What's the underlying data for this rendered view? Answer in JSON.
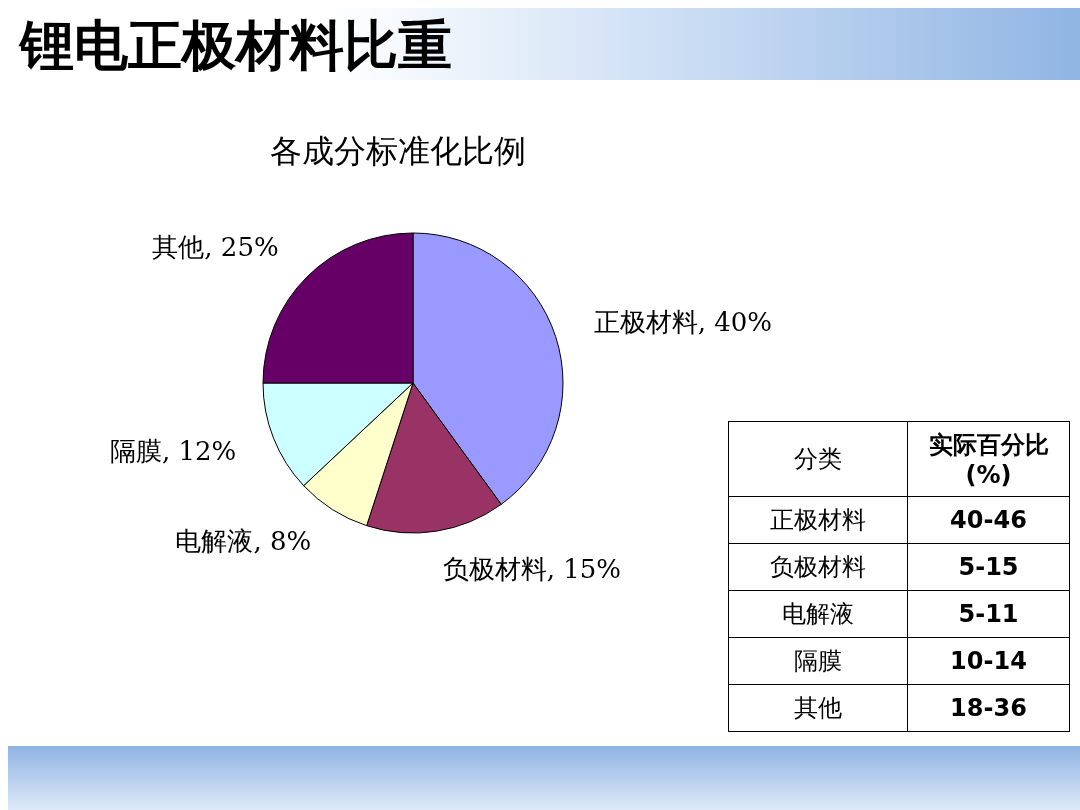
{
  "chart_data": [
    {
      "type": "pie",
      "title": "锂电正极材料比重",
      "subtitle": "各成分标准化比例",
      "categories": [
        "正极材料",
        "负极材料",
        "电解液",
        "隔膜",
        "其他"
      ],
      "values": [
        40,
        15,
        8,
        12,
        25
      ],
      "value_labels": [
        "40%",
        "15%",
        "8%",
        "12%",
        "25%"
      ],
      "colors": [
        "#9999ff",
        "#993366",
        "#ffffcc",
        "#ccffff",
        "#660066"
      ]
    },
    {
      "type": "other",
      "annotations": [
        "分类",
        "实际百分比(%)"
      ],
      "categories": [
        "正极材料",
        "负极材料",
        "电解液",
        "隔膜",
        "其他"
      ],
      "value_labels": [
        "40-46",
        "5-15",
        "5-11",
        "10-14",
        "18-36"
      ]
    }
  ]
}
